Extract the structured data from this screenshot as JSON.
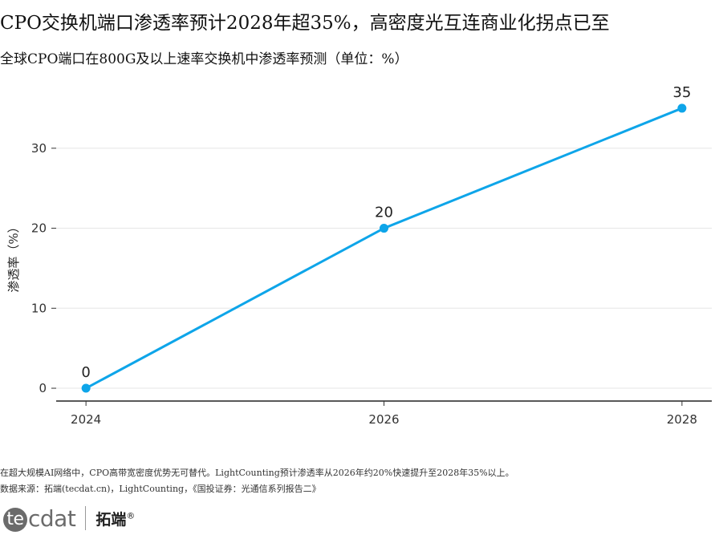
{
  "title": "CPO交换机端口渗透率预计2028年超35%，高密度光互连商业化拐点已至",
  "subtitle": "全球CPO端口在800G及以上速率交换机中渗透率预测（单位：%）",
  "chart_data": {
    "type": "line",
    "x": [
      2024,
      2026,
      2028
    ],
    "x_tick_labels": [
      "2024",
      "2026",
      "2028"
    ],
    "series": [
      {
        "values": [
          0,
          20,
          35
        ],
        "data_labels": [
          "0",
          "20",
          "35"
        ],
        "color": "#0EA5E9"
      }
    ],
    "ylabel": "渗透率（%）",
    "xlabel": "",
    "y_ticks": [
      0,
      10,
      20,
      30
    ],
    "y_tick_labels": [
      "0",
      "10",
      "20",
      "30"
    ],
    "ylim": [
      -1.6,
      37.5
    ],
    "xlim": [
      2023.8,
      2028.2
    ],
    "grid": "horizontal"
  },
  "caption": {
    "note": "在超大规模AI网络中，CPO高带宽密度优势无可替代。LightCounting预计渗透率从2026年约20%快速提升至2028年35%以上。",
    "source": "数据来源：拓端(tecdat.cn)，LightCounting，《国投证券：光通信系列报告二》"
  },
  "logo": {
    "mark_first": "te",
    "mark_rest": "cdat",
    "cn": "拓端",
    "reg": "®"
  }
}
